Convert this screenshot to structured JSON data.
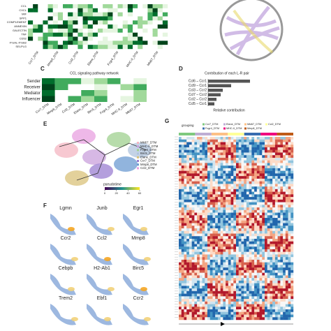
{
  "panel_labels": {
    "c": "C",
    "d": "D",
    "e": "E",
    "f": "F",
    "g": "G"
  },
  "panel_a": {
    "rows": [
      "CCL",
      "CXCL",
      "MIF",
      "SPP1",
      "COMPLEMENT",
      "ANNEXIN",
      "GALECTIN",
      "TNF",
      "CD52",
      "ITGAL-ITGB2",
      "SELPLG"
    ],
    "columns": [
      "Ccr7_DTM",
      "Mmp8_DTM",
      "Ccl2_DTM",
      "Elane_DTM",
      "Fcgr4_DTM",
      "MHC-II_DTM",
      "Mki67_DTM"
    ]
  },
  "panel_c": {
    "title": "CCL signaling pathway network",
    "roles": [
      "Sender",
      "Receiver",
      "Mediator",
      "Influencer"
    ],
    "columns": [
      "Ccr7_DTM",
      "Mmp8_DTM",
      "Ccl2_DTM",
      "Elane_DTM",
      "Birc5_DTM",
      "Fcgr4_DTM",
      "MHC-II_DTM",
      "Mki67_DTM"
    ]
  },
  "panel_d": {
    "title": "Contribution of each L-R pair",
    "pairs": [
      "Ccl6 – Ccr1",
      "Ccl9 – Ccr1",
      "Ccl3 – Ccr2",
      "Ccl7 – Ccr2",
      "Ccl2 – Ccr2",
      "Ccl5 – Ccr1"
    ],
    "values": [
      1.0,
      0.55,
      0.35,
      0.3,
      0.2,
      0.15
    ],
    "xlabel": "Relative contribution"
  },
  "panel_e": {
    "clusters": [
      "Mki67_DTM",
      "MHC-II_DTM",
      "Fcgr4_DTM",
      "Birc5_DTM",
      "Elane_DTM",
      "Ccr7_DTM",
      "Mmp8_DTM",
      "Ccl2_DTM"
    ],
    "pseudotime_label": "pseudotime",
    "pseudotime_ticks": [
      0,
      20,
      40,
      60
    ]
  },
  "panel_f": {
    "genes": [
      "Lgmn",
      "Junb",
      "Egr1",
      "Ccr2",
      "Ccl2",
      "Mmp8",
      "Cebpb",
      "H2-Ab1",
      "Birc5",
      "Trem2",
      "Ebf1",
      "Ccr2"
    ]
  },
  "panel_g": {
    "grouping_label": "grouping",
    "groups": [
      "Ccr7_DTM",
      "Elane_DTM",
      "Mki67_DTM",
      "Ccl2_DTM",
      "Fcgr4_DTM",
      "MHC-II_DTM",
      "Mmp8_DTM"
    ]
  }
}
